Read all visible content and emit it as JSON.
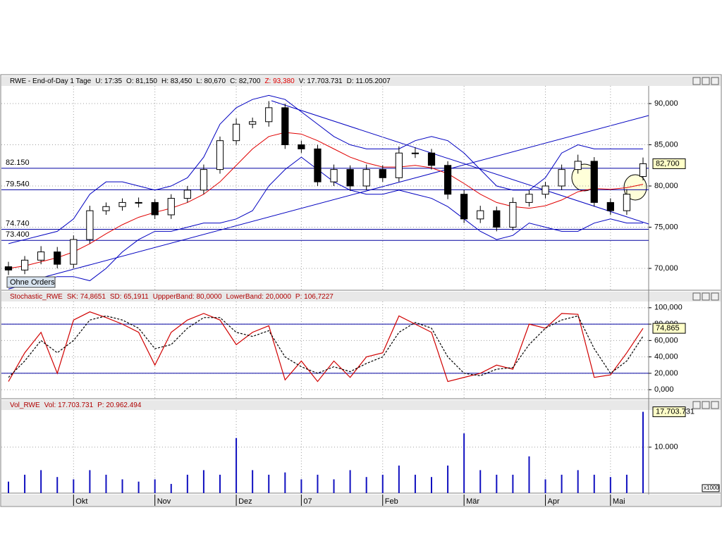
{
  "chart_data": [
    {
      "type": "candlestick",
      "title": "RWE - End-of-Day 1 Tage",
      "stats": [
        "U: 17:35",
        "O: 81,150",
        "H: 83,450",
        "L: 80,670",
        "C: 82,700",
        "Z: 93,380",
        "V: 17.703.731",
        "D: 11.05.2007"
      ],
      "categories": [
        null,
        null,
        null,
        null,
        "Okt",
        null,
        null,
        null,
        null,
        "Nov",
        null,
        null,
        null,
        null,
        "Dez",
        null,
        null,
        null,
        "07",
        null,
        null,
        null,
        null,
        "Feb",
        null,
        null,
        null,
        null,
        "Mär",
        null,
        null,
        null,
        null,
        "Apr",
        null,
        null,
        null,
        "Mai",
        null,
        null
      ],
      "open": [
        70.2,
        69.8,
        71,
        72,
        70.5,
        73.5,
        77,
        77.5,
        78,
        78,
        76.5,
        78.5,
        79.5,
        82,
        85.5,
        87.5,
        87.8,
        89.5,
        85,
        84.5,
        80.5,
        82,
        80,
        82,
        81,
        84,
        84,
        82.5,
        79,
        76,
        77,
        75,
        78,
        79,
        80,
        82,
        83,
        78,
        77,
        81.15
      ],
      "high": [
        70.8,
        71.5,
        72.7,
        72.6,
        74,
        77.6,
        78,
        78.5,
        78.6,
        78.4,
        79,
        80,
        82.6,
        86,
        88.2,
        88.3,
        90.3,
        90,
        85.5,
        85,
        82.6,
        82.5,
        82.6,
        82.5,
        84.8,
        84.7,
        84.5,
        83,
        79.5,
        77.6,
        77.5,
        78.6,
        79.5,
        80.5,
        82.6,
        83.8,
        83.5,
        78.5,
        79.6,
        83.45
      ],
      "low": [
        69.2,
        69.3,
        70.5,
        70,
        70,
        73,
        76.5,
        77,
        77.4,
        76,
        76,
        78,
        79,
        81.5,
        85,
        87,
        87.2,
        84.5,
        84,
        80,
        80,
        79.4,
        79.5,
        80.5,
        80.5,
        83.4,
        82,
        78.4,
        75.5,
        75.5,
        74.5,
        74.6,
        77.5,
        78.5,
        79.5,
        81.5,
        77.5,
        76.5,
        76.5,
        80.67
      ],
      "close": [
        69.8,
        71,
        72,
        70.5,
        73.5,
        77,
        77.5,
        78,
        78,
        76.5,
        78.5,
        79.5,
        82,
        85.5,
        87.5,
        87.8,
        89.5,
        85,
        84.5,
        80.5,
        82,
        80,
        82,
        81,
        84,
        84,
        82.5,
        79,
        76,
        77,
        75,
        78,
        79,
        80,
        82,
        83,
        78,
        77,
        79,
        82.7
      ],
      "up_color": "#ffffff",
      "down_color": "#000000",
      "overlays": [
        {
          "color": "#e00000",
          "values": [
            70,
            70.3,
            70.8,
            71.3,
            72,
            73,
            74.2,
            75.3,
            76.2,
            76.8,
            77.3,
            78,
            79,
            80.5,
            82.5,
            84.5,
            86,
            86.5,
            86.3,
            85.5,
            84.5,
            83.5,
            82.8,
            82.3,
            82.3,
            82.5,
            82.2,
            81.5,
            80.3,
            79,
            78,
            77.5,
            77.3,
            77.6,
            78.3,
            79.3,
            79.7,
            79.6,
            79.8,
            80.2
          ]
        },
        {
          "color": "#0000c0",
          "values": [
            73,
            73.5,
            74,
            74.5,
            76,
            79,
            80.5,
            80.5,
            80,
            79.5,
            80,
            81,
            83.5,
            87.5,
            89.5,
            90.5,
            91,
            90.5,
            89,
            87.5,
            86,
            85,
            84.5,
            84.5,
            84.5,
            85.5,
            86,
            85.5,
            84,
            82,
            80,
            79.5,
            79.5,
            81,
            84,
            85,
            84.5,
            84.5,
            84.5,
            84.5
          ]
        },
        {
          "color": "#0000c0",
          "values": [
            67.5,
            68,
            68.5,
            69,
            69,
            68.5,
            70,
            72,
            73.5,
            74.5,
            74.5,
            75,
            75.5,
            75.5,
            76,
            77,
            80,
            82,
            83.5,
            82,
            80.5,
            79.5,
            79,
            79,
            79.5,
            79,
            78.5,
            77.5,
            76,
            74.5,
            73.5,
            74,
            75.5,
            75,
            74.5,
            74.5,
            75.5,
            76,
            75.5,
            75.5
          ]
        }
      ],
      "levels": [
        {
          "value": 82.15,
          "label": "82.150"
        },
        {
          "value": 79.54,
          "label": "79.540"
        },
        {
          "value": 74.74,
          "label": "74.740"
        },
        {
          "value": 73.4,
          "label": "73.400"
        }
      ],
      "level_color": "#0000a0",
      "last_label": "82,700",
      "button": "Ohne Orders",
      "ylim": [
        67.35,
        92.14
      ],
      "yticks": [
        {
          "value": 70,
          "label": "70,000"
        },
        {
          "value": 75,
          "label": "75,000"
        },
        {
          "value": 80,
          "label": "80,000"
        },
        {
          "value": 85,
          "label": "85,000"
        },
        {
          "value": 90,
          "label": "90,000"
        }
      ],
      "grid": true
    },
    {
      "type": "line",
      "title": "Stochastic_RWE",
      "stats": [
        "SK: 74,8651",
        "SD: 65,1911",
        "UppperBand: 80,0000",
        "LowerBand: 20,0000",
        "P: 106,7227"
      ],
      "series": [
        {
          "color": "#d00000",
          "dashed": false,
          "values": [
            10,
            45,
            70,
            20,
            85,
            95,
            88,
            80,
            70,
            30,
            70,
            85,
            93,
            85,
            55,
            70,
            78,
            12,
            35,
            10,
            35,
            15,
            40,
            45,
            90,
            80,
            70,
            10,
            15,
            20,
            30,
            25,
            80,
            75,
            93,
            92,
            15,
            18,
            45,
            74.865
          ]
        },
        {
          "color": "#000000",
          "dashed": true,
          "values": [
            15,
            35,
            60,
            45,
            60,
            85,
            90,
            85,
            75,
            50,
            55,
            75,
            88,
            88,
            70,
            65,
            72,
            40,
            28,
            20,
            28,
            22,
            32,
            40,
            70,
            82,
            75,
            40,
            20,
            17,
            25,
            27,
            55,
            75,
            85,
            90,
            50,
            20,
            35,
            65.19
          ]
        }
      ],
      "bands": [
        80,
        20
      ],
      "band_color": "#0000a0",
      "last_label": "74,865",
      "ylim": [
        -11,
        107.6
      ],
      "yticks": [
        {
          "value": 0,
          "label": "0,000"
        },
        {
          "value": 20,
          "label": "20,000"
        },
        {
          "value": 40,
          "label": "40,000"
        },
        {
          "value": 60,
          "label": "60,000"
        },
        {
          "value": 80,
          "label": "80,000"
        },
        {
          "value": 100,
          "label": "100,000"
        }
      ],
      "grid": true
    },
    {
      "type": "bar",
      "title": "Vol_RWE",
      "stats": [
        "Vol: 17.703.731",
        "P: 20.962.494"
      ],
      "values": [
        2500000,
        4000000,
        5000000,
        3500000,
        3000000,
        5000000,
        4000000,
        3000000,
        2500000,
        3000000,
        2000000,
        4000000,
        5000000,
        4000000,
        12000000,
        5000000,
        4000000,
        4500000,
        3000000,
        4000000,
        3000000,
        5000000,
        3500000,
        4000000,
        6000000,
        4000000,
        3500000,
        6000000,
        13000000,
        5000000,
        4000000,
        4000000,
        8000000,
        3000000,
        4000000,
        5000000,
        4000000,
        3500000,
        4000000,
        17703731
      ],
      "color": "#1010c0",
      "last_label": "17.703.731",
      "unit_note": "x1000",
      "ylim": [
        0,
        18100000
      ],
      "yticks": [
        {
          "value": 10000000,
          "label": "10.000"
        }
      ],
      "grid": true
    }
  ]
}
